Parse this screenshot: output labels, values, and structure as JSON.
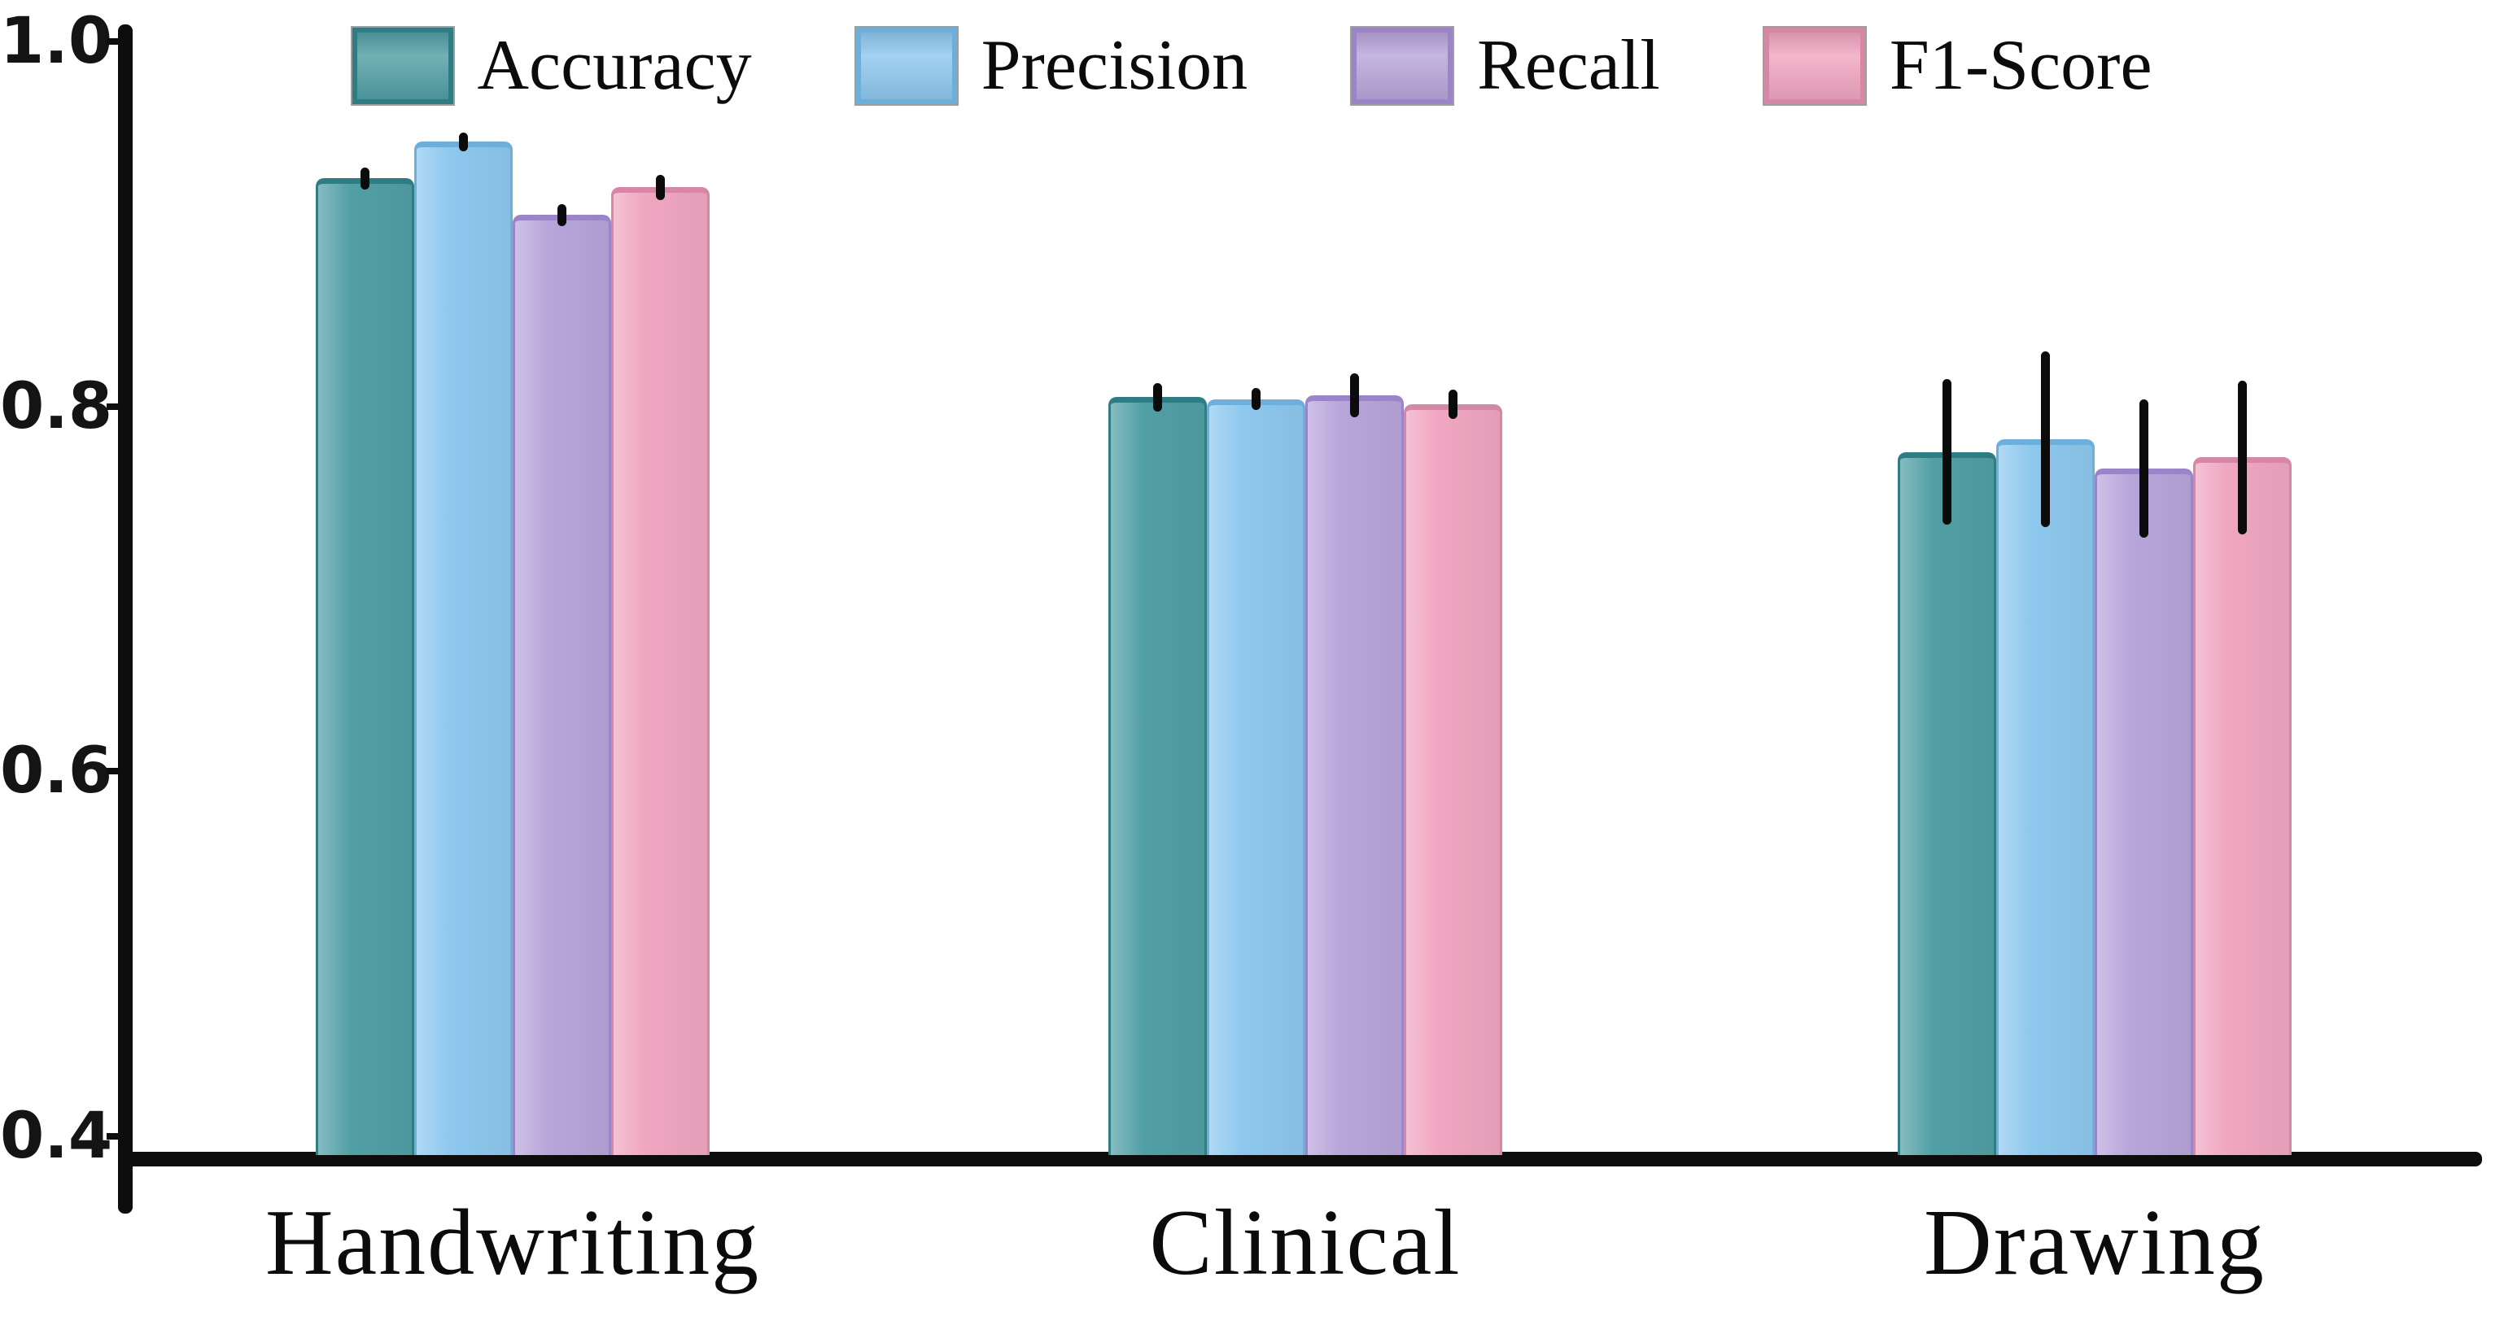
{
  "chart_data": {
    "type": "bar",
    "title": "",
    "xlabel": "",
    "ylabel": "",
    "categories": [
      "Handwriting",
      "Clinical",
      "Drawing"
    ],
    "series": [
      {
        "name": "Accuracy",
        "color": "#519fa5",
        "border_color": "#2e7d83",
        "values": [
          0.925,
          0.805,
          0.775
        ],
        "errors": [
          0.006,
          0.008,
          0.04
        ]
      },
      {
        "name": "Precision",
        "color": "#8ec8ee",
        "border_color": "#6cafdb",
        "values": [
          0.945,
          0.804,
          0.782
        ],
        "errors": [
          0.005,
          0.006,
          0.048
        ]
      },
      {
        "name": "Recall",
        "color": "#b8a5da",
        "border_color": "#9b84c7",
        "values": [
          0.905,
          0.806,
          0.766
        ],
        "errors": [
          0.006,
          0.012,
          0.038
        ]
      },
      {
        "name": "F1-Score",
        "color": "#f0a6c0",
        "border_color": "#d687a5",
        "values": [
          0.92,
          0.801,
          0.772
        ],
        "errors": [
          0.007,
          0.008,
          0.042
        ]
      }
    ],
    "yticks": [
      {
        "label": "1.0",
        "value": 1.0
      },
      {
        "label": "0.8",
        "value": 0.8
      },
      {
        "label": "0.6",
        "value": 0.6
      },
      {
        "label": "0.4",
        "value": 0.4
      }
    ],
    "ylim": [
      0.4,
      1.02
    ],
    "grid": false,
    "error_bars": true,
    "legend_position": "top-center-inside",
    "axis_color": "#0d0d0d",
    "background_color": "#ffffff"
  }
}
